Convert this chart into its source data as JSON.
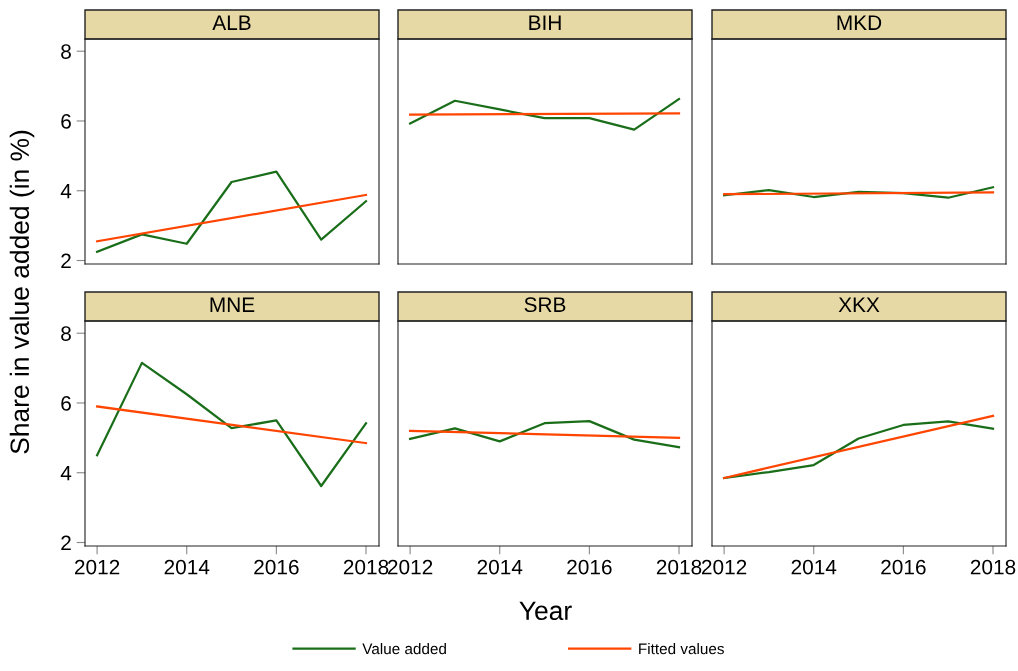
{
  "chart_data": [
    {
      "type": "line",
      "title": "ALB",
      "ylabel": "Share in value added (in %)",
      "xlim": [
        2011.73,
        2018.29
      ],
      "ylim": [
        1.9,
        8.35
      ],
      "xticks": [
        2012,
        2014,
        2016,
        2018
      ],
      "yticks": [
        2,
        4,
        6,
        8
      ],
      "tick_labels": "y",
      "series": [
        {
          "color": "#1a6e1a",
          "x": [
            2012,
            2013,
            2014,
            2015,
            2016,
            2017,
            2018
          ],
          "values": [
            2.25,
            2.75,
            2.48,
            4.25,
            4.55,
            2.6,
            3.7
          ]
        },
        {
          "color": "#ff4500",
          "x": [
            2012,
            2018
          ],
          "values": [
            2.55,
            3.88
          ]
        }
      ]
    },
    {
      "type": "line",
      "title": "BIH",
      "xlim": [
        2011.73,
        2018.29
      ],
      "ylim": [
        1.9,
        8.35
      ],
      "xticks": [
        2012,
        2014,
        2016,
        2018
      ],
      "yticks": [
        2,
        4,
        6,
        8
      ],
      "tick_labels": false,
      "series": [
        {
          "color": "#1a6e1a",
          "x": [
            2012,
            2013,
            2014,
            2015,
            2016,
            2017,
            2018
          ],
          "values": [
            5.93,
            6.58,
            6.33,
            6.08,
            6.08,
            5.75,
            6.63
          ]
        },
        {
          "color": "#ff4500",
          "x": [
            2012,
            2018
          ],
          "values": [
            6.18,
            6.22
          ]
        }
      ]
    },
    {
      "type": "line",
      "title": "MKD",
      "xlim": [
        2011.73,
        2018.29
      ],
      "ylim": [
        1.9,
        8.35
      ],
      "xticks": [
        2012,
        2014,
        2016,
        2018
      ],
      "yticks": [
        2,
        4,
        6,
        8
      ],
      "tick_labels": false,
      "series": [
        {
          "color": "#1a6e1a",
          "x": [
            2012,
            2013,
            2014,
            2015,
            2016,
            2017,
            2018
          ],
          "values": [
            3.87,
            4.02,
            3.82,
            3.97,
            3.93,
            3.8,
            4.1
          ]
        },
        {
          "color": "#ff4500",
          "x": [
            2012,
            2018
          ],
          "values": [
            3.9,
            3.95
          ]
        }
      ]
    },
    {
      "type": "line",
      "title": "MNE",
      "xlim": [
        2011.73,
        2018.29
      ],
      "ylim": [
        1.9,
        8.35
      ],
      "xticks": [
        2012,
        2014,
        2016,
        2018
      ],
      "yticks": [
        2,
        4,
        6,
        8
      ],
      "series": [
        {
          "color": "#1a6e1a",
          "x": [
            2012,
            2013,
            2014,
            2015,
            2016,
            2017,
            2018
          ],
          "values": [
            4.5,
            7.15,
            6.25,
            5.28,
            5.5,
            3.62,
            5.42
          ]
        },
        {
          "color": "#ff4500",
          "x": [
            2012,
            2018
          ],
          "values": [
            5.9,
            4.85
          ]
        }
      ]
    },
    {
      "type": "line",
      "title": "SRB",
      "xlabel": "Year",
      "xlim": [
        2011.73,
        2018.29
      ],
      "ylim": [
        1.9,
        8.35
      ],
      "xticks": [
        2012,
        2014,
        2016,
        2018
      ],
      "yticks": [
        2,
        4,
        6,
        8
      ],
      "tick_labels": "x",
      "legend": "bottom",
      "series": [
        {
          "name": "Value added",
          "color": "#1a6e1a",
          "x": [
            2012,
            2013,
            2014,
            2015,
            2016,
            2017,
            2018
          ],
          "values": [
            4.97,
            5.27,
            4.9,
            5.42,
            5.48,
            4.95,
            4.73
          ]
        },
        {
          "name": "Fitted values",
          "color": "#ff4500",
          "x": [
            2012,
            2018
          ],
          "values": [
            5.2,
            5.0
          ]
        }
      ]
    },
    {
      "type": "line",
      "title": "XKX",
      "xlim": [
        2011.73,
        2018.29
      ],
      "ylim": [
        1.9,
        8.35
      ],
      "xticks": [
        2012,
        2014,
        2016,
        2018
      ],
      "yticks": [
        2,
        4,
        6,
        8
      ],
      "tick_labels": "x",
      "series": [
        {
          "color": "#1a6e1a",
          "x": [
            2012,
            2013,
            2014,
            2015,
            2016,
            2017,
            2018
          ],
          "values": [
            3.85,
            4.02,
            4.22,
            4.98,
            5.37,
            5.47,
            5.26
          ]
        },
        {
          "color": "#ff4500",
          "x": [
            2012,
            2018
          ],
          "values": [
            3.85,
            5.63
          ]
        }
      ]
    }
  ]
}
